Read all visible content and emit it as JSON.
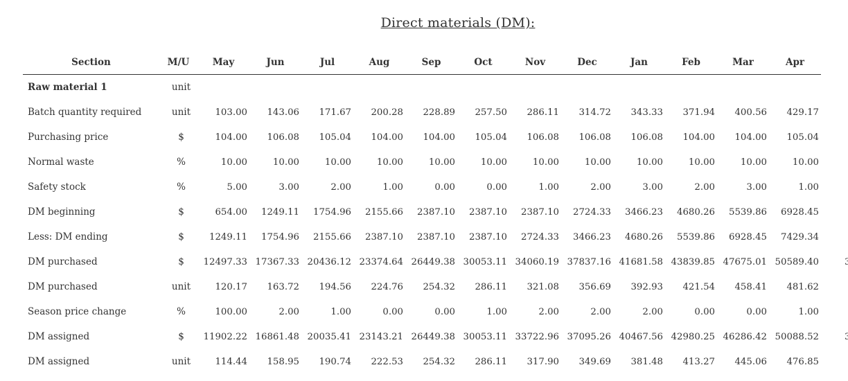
{
  "title": "Direct materials (DM):",
  "header": {
    "section": "Section",
    "mu": "M/U",
    "months": [
      "May",
      "Jun",
      "Jul",
      "Aug",
      "Sep",
      "Oct",
      "Nov",
      "Dec",
      "Jan",
      "Feb",
      "Mar",
      "Apr"
    ]
  },
  "rows": [
    {
      "section": "Raw material 1",
      "mu": "unit",
      "values": [
        "",
        "",
        "",
        "",
        "",
        "",
        "",
        "",
        "",
        "",
        "",
        ""
      ]
    },
    {
      "section": "Batch quantity required",
      "mu": "unit",
      "values": [
        "103.00",
        "143.06",
        "171.67",
        "200.28",
        "228.89",
        "257.50",
        "286.11",
        "314.72",
        "343.33",
        "371.94",
        "400.56",
        "429.17"
      ]
    },
    {
      "section": "Purchasing price",
      "mu": "$",
      "values": [
        "104.00",
        "106.08",
        "105.04",
        "104.00",
        "104.00",
        "105.04",
        "106.08",
        "106.08",
        "106.08",
        "104.00",
        "104.00",
        "105.04"
      ]
    },
    {
      "section": "Normal waste",
      "mu": "%",
      "values": [
        "10.00",
        "10.00",
        "10.00",
        "10.00",
        "10.00",
        "10.00",
        "10.00",
        "10.00",
        "10.00",
        "10.00",
        "10.00",
        "10.00"
      ]
    },
    {
      "section": "Safety stock",
      "mu": "%",
      "values": [
        "5.00",
        "3.00",
        "2.00",
        "1.00",
        "0.00",
        "0.00",
        "1.00",
        "2.00",
        "3.00",
        "2.00",
        "3.00",
        "1.00"
      ]
    },
    {
      "section": "DM beginning",
      "mu": "$",
      "values": [
        "654.00",
        "1249.11",
        "1754.96",
        "2155.66",
        "2387.10",
        "2387.10",
        "2387.10",
        "2724.33",
        "3466.23",
        "4680.26",
        "5539.86",
        "6928.45"
      ]
    },
    {
      "section": "Less: DM ending",
      "mu": "$",
      "values": [
        "1249.11",
        "1754.96",
        "2155.66",
        "2387.10",
        "2387.10",
        "2387.10",
        "2724.33",
        "3466.23",
        "4680.26",
        "5539.86",
        "6928.45",
        "7429.34"
      ]
    },
    {
      "section": "DM purchased",
      "mu": "$",
      "values": [
        "12497.33",
        "17367.33",
        "20436.12",
        "23374.64",
        "26449.38",
        "30053.11",
        "34060.19",
        "37837.16",
        "41681.58",
        "43839.85",
        "47675.01",
        "50589.40"
      ]
    },
    {
      "section": "DM purchased",
      "mu": "unit",
      "values": [
        "120.17",
        "163.72",
        "194.56",
        "224.76",
        "254.32",
        "286.11",
        "321.08",
        "356.69",
        "392.93",
        "421.54",
        "458.41",
        "481.62"
      ]
    },
    {
      "section": "Season price change",
      "mu": "%",
      "values": [
        "100.00",
        "2.00",
        "1.00",
        "0.00",
        "0.00",
        "1.00",
        "2.00",
        "2.00",
        "2.00",
        "0.00",
        "0.00",
        "1.00"
      ]
    },
    {
      "section": "DM assigned",
      "mu": "$",
      "values": [
        "11902.22",
        "16861.48",
        "20035.41",
        "23143.21",
        "26449.38",
        "30053.11",
        "33722.96",
        "37095.26",
        "40467.56",
        "42980.25",
        "46286.42",
        "50088.52"
      ]
    },
    {
      "section": "DM assigned",
      "mu": "unit",
      "values": [
        "114.44",
        "158.95",
        "190.74",
        "222.53",
        "254.32",
        "286.11",
        "317.90",
        "349.69",
        "381.48",
        "413.27",
        "445.06",
        "476.85"
      ]
    }
  ],
  "cut_off_glyph": "3"
}
